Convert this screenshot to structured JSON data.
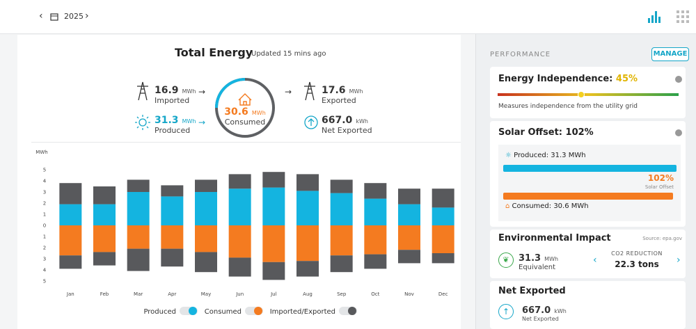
{
  "header": {
    "year": "2025"
  },
  "summary": {
    "title": "Total Energy",
    "updated": "Updated 15 mins ago",
    "imported": {
      "value": "16.9",
      "unit": "MWh",
      "label": "Imported"
    },
    "produced": {
      "value": "31.3",
      "unit": "MWh",
      "label": "Produced"
    },
    "consumed": {
      "value": "30.6",
      "unit": "MWh",
      "label": "Consumed"
    },
    "exported": {
      "value": "17.6",
      "unit": "MWh",
      "label": "Exported"
    },
    "net_exported": {
      "value": "667.0",
      "unit": "kWh",
      "label": "Net Exported"
    }
  },
  "chart_data": {
    "type": "bar",
    "stacked": true,
    "y_label": "MWh",
    "categories": [
      "Jan",
      "Feb",
      "Mar",
      "Apr",
      "May",
      "Jun",
      "Jul",
      "Aug",
      "Sep",
      "Oct",
      "Nov",
      "Dec"
    ],
    "ylim": [
      -5,
      5
    ],
    "yticks": [
      {
        "value": -5,
        "label": "5"
      },
      {
        "value": -4,
        "label": "4"
      },
      {
        "value": -3,
        "label": "3"
      },
      {
        "value": -2,
        "label": "2"
      },
      {
        "value": -1,
        "label": "1"
      },
      0,
      1,
      2,
      3,
      4,
      5
    ],
    "series": [
      {
        "name": "Produced",
        "color": "#14b4e0",
        "values": [
          1.9,
          1.9,
          3.0,
          2.6,
          3.0,
          3.3,
          3.4,
          3.1,
          2.9,
          2.4,
          1.9,
          1.6
        ]
      },
      {
        "name": "Consumed",
        "color": "#f47b20",
        "values": [
          -2.7,
          -2.4,
          -2.1,
          -2.1,
          -2.4,
          -2.9,
          -3.3,
          -3.2,
          -2.7,
          -2.6,
          -2.2,
          -2.5
        ]
      },
      {
        "name": "Imported/Exported",
        "color": "#58595c",
        "values": [
          1.9,
          1.6,
          1.1,
          1.0,
          1.1,
          1.3,
          1.4,
          1.5,
          1.2,
          1.4,
          1.4,
          1.7
        ]
      },
      {
        "color": "#58595c",
        "values": [
          -1.2,
          -1.2,
          -2.0,
          -1.6,
          -1.8,
          -1.7,
          -1.6,
          -1.4,
          -1.5,
          -1.3,
          -1.2,
          -0.9
        ]
      }
    ]
  },
  "sidebar": {
    "heading": "PERFORMANCE",
    "manage": "MANAGE",
    "independence": {
      "title": "Energy Independence:",
      "value": "45%",
      "description": "Measures independence from the utility grid"
    },
    "solar_offset": {
      "title": "Solar Offset: 102%",
      "produced": "Produced: 31.3 MWh",
      "percent": "102%",
      "percent_label": "Solar Offset",
      "consumed": "Consumed: 30.6 MWh"
    },
    "environmental": {
      "title": "Environmental Impact",
      "source": "Source: epa.gov",
      "value": "31.3",
      "unit": "MWh",
      "label": "Equivalent",
      "co2_label": "CO2 REDUCTION",
      "co2_value": "22.3 tons"
    },
    "net_exported": {
      "title": "Net Exported",
      "value": "667.0",
      "unit": "kWh",
      "label": "Net Exported"
    }
  }
}
